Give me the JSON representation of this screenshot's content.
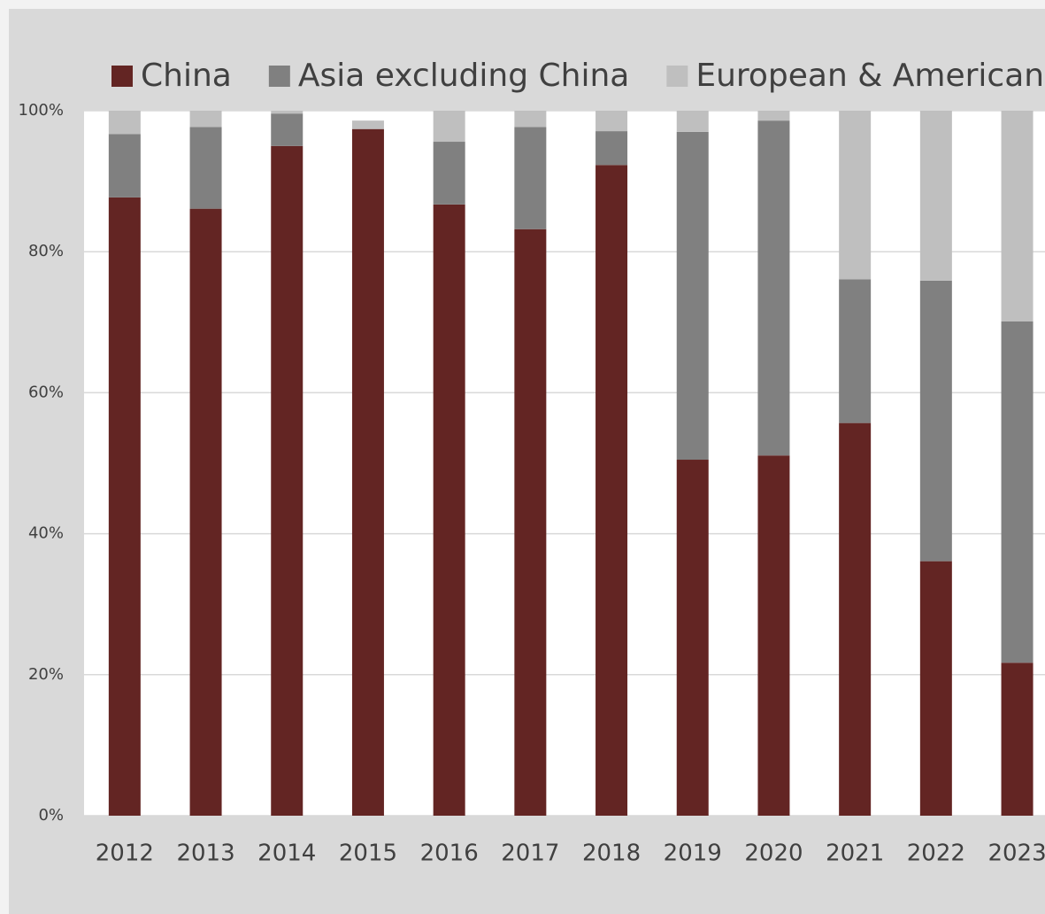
{
  "chart_data": {
    "type": "stacked_bar",
    "categories": [
      "2012",
      "2013",
      "2014",
      "2015",
      "2016",
      "2017",
      "2018",
      "2019",
      "2020",
      "2021",
      "2022",
      "2023"
    ],
    "series": [
      {
        "name": "China",
        "color": "#632523",
        "values": [
          87.7,
          86.1,
          95.0,
          97.4,
          86.7,
          83.2,
          92.3,
          50.5,
          51.1,
          55.7,
          36.1,
          21.7
        ]
      },
      {
        "name": "Asia excluding China",
        "color": "#808080",
        "values": [
          9.0,
          11.6,
          4.6,
          0,
          8.9,
          14.5,
          4.8,
          46.5,
          47.5,
          20.4,
          39.8,
          48.4
        ]
      },
      {
        "name": "European & American",
        "color": "#bfbfbf",
        "values": [
          3.3,
          2.3,
          0.4,
          1.2,
          4.4,
          2.3,
          2.9,
          3.0,
          1.4,
          23.9,
          24.1,
          29.9
        ]
      }
    ],
    "ylim": [
      0,
      100
    ],
    "yticks": [
      {
        "value": 0,
        "label": "0%"
      },
      {
        "value": 20,
        "label": "20%"
      },
      {
        "value": 40,
        "label": "40%"
      },
      {
        "value": 60,
        "label": "60%"
      },
      {
        "value": 80,
        "label": "80%"
      },
      {
        "value": 100,
        "label": "100%"
      }
    ],
    "grid": true,
    "legend": "top"
  }
}
